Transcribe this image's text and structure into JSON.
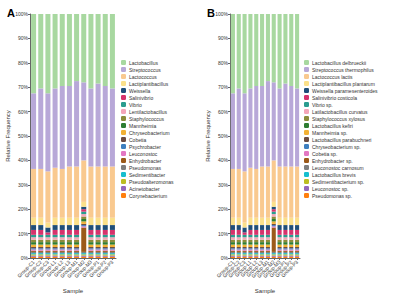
{
  "chart_data": [
    {
      "type": "bar",
      "title": "A",
      "x_label": "Sample",
      "y_label": "Relative Frequency",
      "categories": [
        "Group-C1",
        "Group-C2",
        "Group-C3",
        "Group-L1",
        "Group-L2",
        "Group-L3",
        "Group-M1",
        "Group-M2",
        "Group-M3",
        "Group-P1",
        "Group-P2",
        "Group-P3"
      ],
      "series": [
        {
          "name": "Lactobacillus",
          "color": "#a8d8a0",
          "values": [
            32.5,
            30.5,
            32.5,
            30.5,
            29.5,
            29.5,
            27.5,
            28,
            30.5,
            28.5,
            29.5,
            30.5
          ]
        },
        {
          "name": "Streptococcus",
          "color": "#b8a8d8",
          "values": [
            31,
            33,
            32,
            32.5,
            34,
            33,
            35,
            32,
            32,
            34,
            33,
            32
          ]
        },
        {
          "name": "Lactococcus",
          "color": "#f9c98f",
          "values": [
            20,
            20,
            21,
            20.5,
            20,
            21,
            21,
            17,
            21,
            21,
            21,
            21
          ]
        },
        {
          "name": "Lactiplantibacillus",
          "color": "#fbe08a",
          "values": [
            3,
            3,
            2,
            3,
            3,
            3,
            3,
            2,
            3,
            3,
            3,
            3
          ]
        },
        {
          "name": "Weissella",
          "color": "#1f4e79",
          "values": [
            2,
            2,
            2,
            2,
            2,
            2,
            2,
            1,
            2,
            2,
            2,
            2
          ]
        },
        {
          "name": "Salinivibrio",
          "color": "#d6336c",
          "values": [
            2,
            2,
            1,
            2,
            2,
            2,
            2,
            1,
            2,
            2,
            2,
            2
          ]
        },
        {
          "name": "Vibrio",
          "color": "#2a9d8f",
          "values": [
            1,
            1,
            1,
            1,
            1,
            1,
            1,
            1,
            1,
            1,
            1,
            1
          ]
        },
        {
          "name": "Lentilactobacillus",
          "color": "#f4a6b8",
          "values": [
            1,
            1,
            1,
            1,
            1,
            1,
            1,
            1,
            1,
            1,
            1,
            1
          ]
        },
        {
          "name": "Staphylococcus",
          "color": "#8c8c3a",
          "values": [
            1,
            1,
            1,
            1,
            1,
            1,
            1,
            1,
            1,
            1,
            1,
            1
          ]
        },
        {
          "name": "Mannheimia",
          "color": "#2e7d32",
          "values": [
            1,
            1,
            1,
            1,
            1,
            1,
            1,
            1,
            1,
            1,
            1,
            1
          ]
        },
        {
          "name": "Chryseobacterium",
          "color": "#f2b134",
          "values": [
            1,
            1,
            1,
            1,
            1,
            1,
            1,
            1,
            1,
            1,
            1,
            1
          ]
        },
        {
          "name": "Cobetia",
          "color": "#6d4c41",
          "values": [
            0.5,
            0.5,
            0.5,
            0.5,
            0.5,
            0.5,
            0.5,
            0.5,
            0.5,
            0.5,
            0.5,
            0.5
          ]
        },
        {
          "name": "Psychrobacter",
          "color": "#3f7fbf",
          "values": [
            0.5,
            0.5,
            0.5,
            0.5,
            0.5,
            0.5,
            0.5,
            0.5,
            0.5,
            0.5,
            0.5,
            0.5
          ]
        },
        {
          "name": "Leuconostoc",
          "color": "#e377c2",
          "values": [
            0.5,
            0.5,
            0.5,
            0.5,
            0.5,
            0.5,
            0.5,
            0.5,
            0.5,
            0.5,
            0.5,
            0.5
          ]
        },
        {
          "name": "Enhydrobacter",
          "color": "#9c5a1a",
          "values": [
            0.5,
            0.5,
            0.5,
            0.5,
            0.5,
            0.5,
            0.5,
            10,
            0.5,
            0.5,
            0.5,
            0.5
          ]
        },
        {
          "name": "Pseudomonas",
          "color": "#7f7f7f",
          "values": [
            0.5,
            0.5,
            0.5,
            0.5,
            0.5,
            0.5,
            0.5,
            0.5,
            0.5,
            0.5,
            0.5,
            0.5
          ]
        },
        {
          "name": "Sedimentibacter",
          "color": "#17becf",
          "values": [
            0.5,
            0.5,
            0.5,
            0.5,
            0.5,
            0.5,
            0.5,
            0.5,
            0.5,
            0.5,
            0.5,
            0.5
          ]
        },
        {
          "name": "Pseudoalteromonas",
          "color": "#bcbd22",
          "values": [
            0.5,
            0.5,
            0.5,
            0.5,
            0.5,
            0.5,
            0.5,
            0.5,
            0.5,
            0.5,
            0.5,
            0.5
          ]
        },
        {
          "name": "Acinetobacter",
          "color": "#9467bd",
          "values": [
            0.5,
            0.5,
            0.5,
            0.5,
            0.5,
            0.5,
            0.5,
            0.5,
            0.5,
            0.5,
            0.5,
            0.5
          ]
        },
        {
          "name": "Corynebacterium",
          "color": "#ff7f0e",
          "values": [
            0.5,
            0.5,
            0.5,
            0.5,
            0.5,
            0.5,
            0.5,
            0.5,
            0.5,
            0.5,
            0.5,
            0.5
          ]
        }
      ],
      "ylim": [
        0,
        100
      ],
      "yticks": [
        {
          "value": 0,
          "label": "0%"
        },
        {
          "value": 10,
          "label": "10%"
        },
        {
          "value": 20,
          "label": "20%"
        },
        {
          "value": 30,
          "label": "30%"
        },
        {
          "value": 40,
          "label": "40%"
        },
        {
          "value": 50,
          "label": "50%"
        },
        {
          "value": 60,
          "label": "60%"
        },
        {
          "value": 70,
          "label": "70%"
        },
        {
          "value": 80,
          "label": "80%"
        },
        {
          "value": 90,
          "label": "90%"
        },
        {
          "value": 100,
          "label": "100%"
        }
      ],
      "stacked": true,
      "legend": "right",
      "grid": false
    },
    {
      "type": "bar",
      "title": "B",
      "x_label": "Sample",
      "y_label": "Relative Frequency",
      "categories": [
        "Group-C1",
        "Group-C2",
        "Group-C3",
        "Group-L1",
        "Group-L2",
        "Group-L3",
        "Group-M1",
        "Group-M2",
        "Group-M3",
        "Group-P1",
        "Group-P2",
        "Group-P3"
      ],
      "series": [
        {
          "name": "Lactobacillus delbrueckii",
          "color": "#a8d8a0",
          "values": [
            32.5,
            30.5,
            32.5,
            30.5,
            29.5,
            29.5,
            27.5,
            28,
            30.5,
            28.5,
            29.5,
            30.5
          ]
        },
        {
          "name": "Streptococcus thermophilus",
          "color": "#b8a8d8",
          "values": [
            31,
            33,
            32,
            32.5,
            34,
            33,
            35,
            32,
            32,
            34,
            33,
            32
          ]
        },
        {
          "name": "Lactococcus lactis",
          "color": "#f9c98f",
          "values": [
            20,
            20,
            21,
            20.5,
            20,
            21,
            21,
            17,
            21,
            21,
            21,
            21
          ]
        },
        {
          "name": "Lactiplantibacillus plantarum",
          "color": "#fbe08a",
          "values": [
            3,
            3,
            2,
            3,
            3,
            3,
            3,
            2,
            3,
            3,
            3,
            3
          ]
        },
        {
          "name": "Weissella paramesenteroides",
          "color": "#1f4e79",
          "values": [
            2,
            2,
            2,
            2,
            2,
            2,
            2,
            1,
            2,
            2,
            2,
            2
          ]
        },
        {
          "name": "Salinivibrio costicola",
          "color": "#d6336c",
          "values": [
            2,
            2,
            1,
            2,
            2,
            2,
            2,
            1,
            2,
            2,
            2,
            2
          ]
        },
        {
          "name": "Vibrio sp.",
          "color": "#2a9d8f",
          "values": [
            1,
            1,
            1,
            1,
            1,
            1,
            1,
            1,
            1,
            1,
            1,
            1
          ]
        },
        {
          "name": "Latilactobacillus curvatus",
          "color": "#f4a6b8",
          "values": [
            1,
            1,
            1,
            1,
            1,
            1,
            1,
            1,
            1,
            1,
            1,
            1
          ]
        },
        {
          "name": "Staphylococcus xylosus",
          "color": "#8c8c3a",
          "values": [
            1,
            1,
            1,
            1,
            1,
            1,
            1,
            1,
            1,
            1,
            1,
            1
          ]
        },
        {
          "name": "Lactobacillus kefiri",
          "color": "#2e7d32",
          "values": [
            1,
            1,
            1,
            1,
            1,
            1,
            1,
            1,
            1,
            1,
            1,
            1
          ]
        },
        {
          "name": "Mannheimia sp.",
          "color": "#f2b134",
          "values": [
            1,
            1,
            1,
            1,
            1,
            1,
            1,
            1,
            1,
            1,
            1,
            1
          ]
        },
        {
          "name": "Lactobacillus parabuchneri",
          "color": "#6d4c41",
          "values": [
            0.5,
            0.5,
            0.5,
            0.5,
            0.5,
            0.5,
            0.5,
            0.5,
            0.5,
            0.5,
            0.5,
            0.5
          ]
        },
        {
          "name": "Chryseobacterium sp.",
          "color": "#3f7fbf",
          "values": [
            0.5,
            0.5,
            0.5,
            0.5,
            0.5,
            0.5,
            0.5,
            0.5,
            0.5,
            0.5,
            0.5,
            0.5
          ]
        },
        {
          "name": "Cobetia sp.",
          "color": "#e377c2",
          "values": [
            0.5,
            0.5,
            0.5,
            0.5,
            0.5,
            0.5,
            0.5,
            0.5,
            0.5,
            0.5,
            0.5,
            0.5
          ]
        },
        {
          "name": "Enhydrobacter sp.",
          "color": "#9c5a1a",
          "values": [
            0.5,
            0.5,
            0.5,
            0.5,
            0.5,
            0.5,
            0.5,
            10,
            0.5,
            0.5,
            0.5,
            0.5
          ]
        },
        {
          "name": "Leuconostoc carnosum",
          "color": "#7f7f7f",
          "values": [
            0.5,
            0.5,
            0.5,
            0.5,
            0.5,
            0.5,
            0.5,
            0.5,
            0.5,
            0.5,
            0.5,
            0.5
          ]
        },
        {
          "name": "Lactobacillus brevis",
          "color": "#17becf",
          "values": [
            0.5,
            0.5,
            0.5,
            0.5,
            0.5,
            0.5,
            0.5,
            0.5,
            0.5,
            0.5,
            0.5,
            0.5
          ]
        },
        {
          "name": "Sedimentibacterium sp.",
          "color": "#bcbd22",
          "values": [
            0.5,
            0.5,
            0.5,
            0.5,
            0.5,
            0.5,
            0.5,
            0.5,
            0.5,
            0.5,
            0.5,
            0.5
          ]
        },
        {
          "name": "Leuconostoc sp.",
          "color": "#9467bd",
          "values": [
            0.5,
            0.5,
            0.5,
            0.5,
            0.5,
            0.5,
            0.5,
            0.5,
            0.5,
            0.5,
            0.5,
            0.5
          ]
        },
        {
          "name": "Pseudomonas sp.",
          "color": "#ff7f0e",
          "values": [
            0.5,
            0.5,
            0.5,
            0.5,
            0.5,
            0.5,
            0.5,
            0.5,
            0.5,
            0.5,
            0.5,
            0.5
          ]
        }
      ],
      "ylim": [
        0,
        100
      ],
      "yticks": [
        {
          "value": 0,
          "label": "0%"
        },
        {
          "value": 10,
          "label": "10%"
        },
        {
          "value": 20,
          "label": "20%"
        },
        {
          "value": 30,
          "label": "30%"
        },
        {
          "value": 40,
          "label": "40%"
        },
        {
          "value": 50,
          "label": "50%"
        },
        {
          "value": 60,
          "label": "60%"
        },
        {
          "value": 70,
          "label": "70%"
        },
        {
          "value": 80,
          "label": "80%"
        },
        {
          "value": 90,
          "label": "90%"
        },
        {
          "value": 100,
          "label": "100%"
        }
      ],
      "stacked": true,
      "legend": "right",
      "grid": false
    }
  ]
}
